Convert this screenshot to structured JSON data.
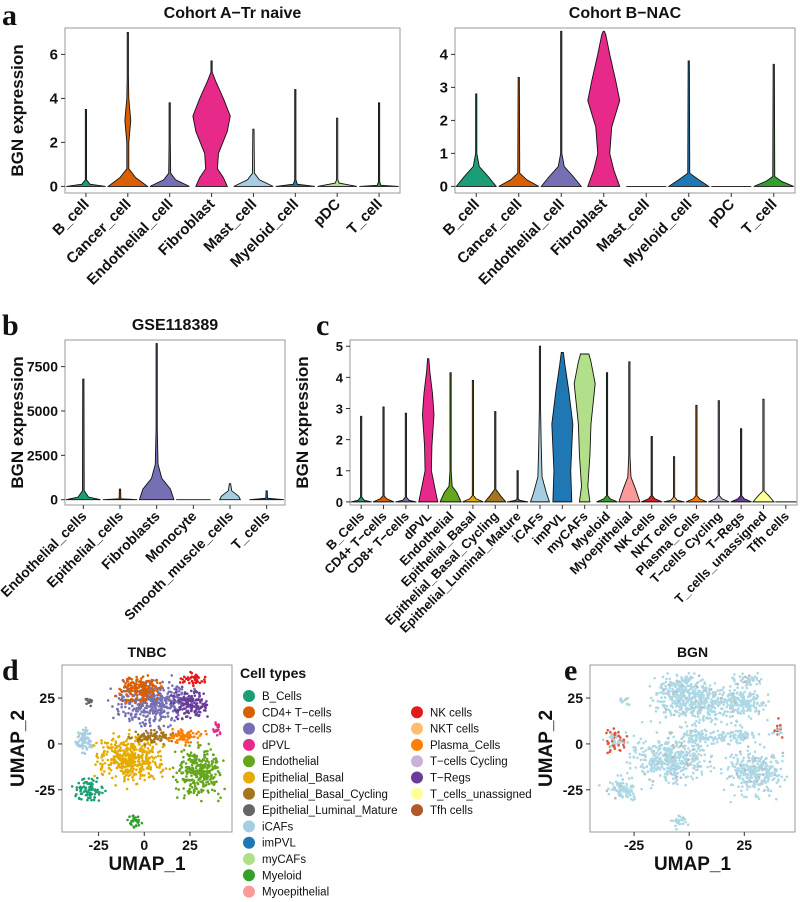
{
  "chart_data": [
    {
      "panel": "a",
      "type": "violin",
      "title": "Cohort A−Tr naive",
      "ylabel": "BGN expression",
      "ylim": [
        -0.3,
        7.2
      ],
      "yticks": [
        0,
        2,
        4,
        6
      ],
      "categories": [
        "B_cell",
        "Cancer_cell",
        "Endothelial_cell",
        "Fibroblast",
        "Mast_cell",
        "Myeloid_cell",
        "pDC",
        "T_cell"
      ],
      "colors": [
        "#1b9e77",
        "#d95f02",
        "#7570b3",
        "#e7298a",
        "#a6cee3",
        "#1f78b4",
        "#b2df8a",
        "#33a02c"
      ],
      "max": [
        3.5,
        7.0,
        3.8,
        5.7,
        2.6,
        4.4,
        3.1,
        3.8
      ],
      "profiles": [
        [
          [
            0,
            1
          ],
          [
            0.1,
            0.2
          ],
          [
            0.3,
            0.02
          ]
        ],
        [
          [
            0,
            1
          ],
          [
            0.4,
            0.4
          ],
          [
            0.8,
            0.05
          ],
          [
            2,
            0.05
          ],
          [
            3,
            0.15
          ],
          [
            4,
            0.05
          ],
          [
            5,
            0.02
          ]
        ],
        [
          [
            0,
            1
          ],
          [
            0.3,
            0.3
          ],
          [
            0.6,
            0.05
          ],
          [
            2,
            0.02
          ]
        ],
        [
          [
            0,
            0.8
          ],
          [
            0.4,
            0.6
          ],
          [
            0.8,
            0.3
          ],
          [
            1.5,
            0.35
          ],
          [
            2.5,
            0.8
          ],
          [
            3.2,
            0.95
          ],
          [
            4,
            0.6
          ],
          [
            4.8,
            0.2
          ],
          [
            5.2,
            0.03
          ]
        ],
        [
          [
            0,
            1
          ],
          [
            0.3,
            0.3
          ],
          [
            0.6,
            0.05
          ]
        ],
        [
          [
            0,
            1
          ],
          [
            0.1,
            0.1
          ],
          [
            0.3,
            0.02
          ]
        ],
        [
          [
            0,
            1
          ],
          [
            0.15,
            0.1
          ],
          [
            0.3,
            0.02
          ]
        ],
        [
          [
            0,
            1
          ],
          [
            0.05,
            0.1
          ],
          [
            0.2,
            0.02
          ]
        ]
      ]
    },
    {
      "panel": "a2",
      "type": "violin",
      "title": "Cohort B−NAC",
      "ylabel": "",
      "ylim": [
        -0.2,
        4.8
      ],
      "yticks": [
        0,
        1,
        2,
        3,
        4
      ],
      "categories": [
        "B_cell",
        "Cancer_cell",
        "Endothelial_cell",
        "Fibroblast",
        "Mast_cell",
        "Myeloid_cell",
        "pDC",
        "T_cell"
      ],
      "colors": [
        "#1b9e77",
        "#d95f02",
        "#7570b3",
        "#e7298a",
        "#a6cee3",
        "#1f78b4",
        "#b2df8a",
        "#33a02c"
      ],
      "max": [
        2.8,
        3.3,
        4.7,
        4.7,
        0,
        3.8,
        0,
        3.7
      ],
      "profiles": [
        [
          [
            0,
            1
          ],
          [
            0.3,
            0.6
          ],
          [
            0.6,
            0.15
          ],
          [
            1,
            0.03
          ]
        ],
        [
          [
            0,
            1
          ],
          [
            0.2,
            0.4
          ],
          [
            0.4,
            0.05
          ]
        ],
        [
          [
            0,
            1
          ],
          [
            0.3,
            0.6
          ],
          [
            0.6,
            0.15
          ],
          [
            1,
            0.03
          ]
        ],
        [
          [
            0,
            0.8
          ],
          [
            0.5,
            0.5
          ],
          [
            1,
            0.3
          ],
          [
            1.8,
            0.4
          ],
          [
            2.6,
            0.8
          ],
          [
            3.2,
            0.6
          ],
          [
            4,
            0.3
          ],
          [
            4.6,
            0.1
          ]
        ],
        [
          [
            0,
            1
          ]
        ],
        [
          [
            0,
            1
          ],
          [
            0.2,
            0.5
          ],
          [
            0.4,
            0.05
          ]
        ],
        [
          [
            0,
            1
          ]
        ],
        [
          [
            0,
            1
          ],
          [
            0.15,
            0.4
          ],
          [
            0.3,
            0.05
          ]
        ]
      ]
    },
    {
      "panel": "b",
      "type": "violin",
      "title": "GSE118389",
      "ylabel": "BGN expression",
      "ylim": [
        -300,
        9000
      ],
      "yticks": [
        0,
        2500,
        5000,
        7500
      ],
      "categories": [
        "Endothelial_cells",
        "Epithelial_cells",
        "Fibroblasts",
        "Monocyte",
        "Smooth_muscle_cells",
        "T_cells"
      ],
      "colors": [
        "#1b9e77",
        "#d95f02",
        "#7570b3",
        "#e7298a",
        "#a6cee3",
        "#1f78b4"
      ],
      "max": [
        6800,
        600,
        8800,
        0,
        900,
        500
      ],
      "profiles": [
        [
          [
            0,
            1
          ],
          [
            150,
            0.3
          ],
          [
            500,
            0.05
          ]
        ],
        [
          [
            0,
            1
          ],
          [
            50,
            0.05
          ]
        ],
        [
          [
            0,
            1
          ],
          [
            600,
            0.8
          ],
          [
            1200,
            0.3
          ],
          [
            2000,
            0.08
          ],
          [
            4000,
            0.03
          ]
        ],
        [
          [
            0,
            1
          ]
        ],
        [
          [
            0,
            0.6
          ],
          [
            200,
            0.5
          ],
          [
            500,
            0.1
          ]
        ],
        [
          [
            0,
            1
          ],
          [
            80,
            0.05
          ]
        ]
      ]
    },
    {
      "panel": "c",
      "type": "violin",
      "title": "",
      "ylabel": "BGN expression",
      "ylim": [
        -0.1,
        5.2
      ],
      "yticks": [
        0,
        1,
        2,
        3,
        4,
        5
      ],
      "categories": [
        "B_Cells",
        "CD4+ T−cells",
        "CD8+ T−cells",
        "dPVL",
        "Endothelial",
        "Epithelial_Basal",
        "Epithelial_Basal_Cycling",
        "Epithelial_Luminal_Mature",
        "iCAFs",
        "imPVL",
        "myCAFs",
        "Myeloid",
        "Myoepithelial",
        "NK cells",
        "NKT cells",
        "Plasma_Cells",
        "T−cells Cycling",
        "T−Regs",
        "T_cells_unassigned",
        "Tfh cells"
      ],
      "colors": [
        "#1b9e77",
        "#d95f02",
        "#7570b3",
        "#e7298a",
        "#66a61e",
        "#e6ab02",
        "#a6761d",
        "#666666",
        "#a6cee3",
        "#1f78b4",
        "#b2df8a",
        "#33a02c",
        "#fb9a99",
        "#e31a1c",
        "#fdbf6f",
        "#ff7f00",
        "#cab2d6",
        "#6a3d9a",
        "#ffff99",
        "#b15928"
      ],
      "max": [
        2.75,
        3.05,
        2.85,
        4.6,
        4.15,
        3.9,
        2.9,
        1.0,
        5.0,
        4.8,
        4.75,
        4.15,
        4.5,
        2.1,
        1.45,
        3.1,
        3.25,
        2.35,
        3.3,
        0
      ],
      "profiles": [
        [
          [
            0,
            1
          ],
          [
            0.05,
            0.3
          ],
          [
            0.15,
            0.03
          ]
        ],
        [
          [
            0,
            1
          ],
          [
            0.1,
            0.3
          ],
          [
            0.2,
            0.03
          ]
        ],
        [
          [
            0,
            1
          ],
          [
            0.05,
            0.3
          ],
          [
            0.15,
            0.03
          ]
        ],
        [
          [
            0,
            0.9
          ],
          [
            0.5,
            0.6
          ],
          [
            1,
            0.3
          ],
          [
            1.8,
            0.35
          ],
          [
            2.8,
            0.55
          ],
          [
            3.5,
            0.4
          ],
          [
            4.2,
            0.15
          ],
          [
            4.6,
            0.03
          ]
        ],
        [
          [
            0,
            1
          ],
          [
            0.3,
            0.6
          ],
          [
            0.5,
            0.15
          ],
          [
            1,
            0.03
          ]
        ],
        [
          [
            0,
            1
          ],
          [
            0.1,
            0.3
          ],
          [
            0.2,
            0.03
          ]
        ],
        [
          [
            0,
            1
          ],
          [
            0.2,
            0.5
          ],
          [
            0.4,
            0.03
          ]
        ],
        [
          [
            0,
            1
          ],
          [
            0.05,
            0.2
          ],
          [
            0.1,
            0.03
          ]
        ],
        [
          [
            0,
            0.9
          ],
          [
            0.3,
            0.6
          ],
          [
            0.8,
            0.2
          ],
          [
            1.8,
            0.12
          ],
          [
            3,
            0.05
          ],
          [
            4,
            0.02
          ]
        ],
        [
          [
            0,
            0.9
          ],
          [
            1,
            0.8
          ],
          [
            2.5,
            1
          ],
          [
            3.6,
            0.6
          ],
          [
            4.4,
            0.25
          ],
          [
            4.8,
            0.1
          ]
        ],
        [
          [
            0,
            0.5
          ],
          [
            0.5,
            0.3
          ],
          [
            1.5,
            0.5
          ],
          [
            2.5,
            0.6
          ],
          [
            3.8,
            1
          ],
          [
            4.5,
            0.6
          ],
          [
            4.75,
            0.4
          ]
        ],
        [
          [
            0,
            1
          ],
          [
            0.1,
            0.3
          ],
          [
            0.2,
            0.03
          ]
        ],
        [
          [
            0,
            1
          ],
          [
            0.4,
            0.6
          ],
          [
            0.8,
            0.15
          ],
          [
            1.5,
            0.05
          ],
          [
            3,
            0.02
          ]
        ],
        [
          [
            0,
            1
          ],
          [
            0.1,
            0.3
          ],
          [
            0.2,
            0.03
          ]
        ],
        [
          [
            0,
            1
          ],
          [
            0.05,
            0.3
          ],
          [
            0.15,
            0.03
          ]
        ],
        [
          [
            0,
            1
          ],
          [
            0.1,
            0.3
          ],
          [
            0.2,
            0.03
          ]
        ],
        [
          [
            0,
            1
          ],
          [
            0.1,
            0.3
          ],
          [
            0.2,
            0.03
          ]
        ],
        [
          [
            0,
            1
          ],
          [
            0.1,
            0.3
          ],
          [
            0.2,
            0.03
          ]
        ],
        [
          [
            0,
            1
          ],
          [
            0.2,
            0.5
          ],
          [
            0.35,
            0.03
          ]
        ],
        [
          [
            0,
            1
          ]
        ]
      ]
    },
    {
      "panel": "d",
      "type": "scatter",
      "title": "TNBC",
      "xlabel": "UMAP_1",
      "ylabel": "UMAP_2",
      "xticks": [
        -25,
        0,
        25
      ],
      "yticks": [
        -25,
        0,
        25
      ],
      "xlim": [
        -45,
        48
      ],
      "ylim": [
        -48,
        43
      ],
      "legend_title": "Cell types",
      "legend_position": "right",
      "clusters": [
        {
          "type": "CD8+ T−cells",
          "center": [
            5,
            22
          ],
          "spread": [
            15,
            9
          ]
        },
        {
          "type": "CD4+ T−cells",
          "center": [
            -3,
            30
          ],
          "spread": [
            9,
            6
          ]
        },
        {
          "type": "Epithelial_Basal",
          "center": [
            -8,
            -8
          ],
          "spread": [
            14,
            10
          ]
        },
        {
          "type": "Epithelial_Basal_Cycling",
          "center": [
            5,
            4
          ],
          "spread": [
            10,
            3
          ]
        },
        {
          "type": "Endothelial",
          "center": [
            30,
            -15
          ],
          "spread": [
            10,
            10
          ]
        },
        {
          "type": "B_Cells",
          "center": [
            -30,
            -25
          ],
          "spread": [
            6,
            5
          ]
        },
        {
          "type": "iCAFs",
          "center": [
            -33,
            2
          ],
          "spread": [
            4,
            6
          ]
        },
        {
          "type": "Epithelial_Luminal_Mature",
          "center": [
            -30,
            23
          ],
          "spread": [
            2,
            2
          ]
        },
        {
          "type": "Myeloid",
          "center": [
            -5,
            -42
          ],
          "spread": [
            3,
            3
          ]
        },
        {
          "type": "Plasma_Cells",
          "center": [
            22,
            4
          ],
          "spread": [
            8,
            3
          ]
        },
        {
          "type": "T−Regs",
          "center": [
            25,
            22
          ],
          "spread": [
            8,
            6
          ]
        },
        {
          "type": "dPVL",
          "center": [
            40,
            8
          ],
          "spread": [
            2,
            3
          ]
        },
        {
          "type": "NK cells",
          "center": [
            27,
            35
          ],
          "spread": [
            5,
            3
          ]
        }
      ]
    },
    {
      "panel": "e",
      "type": "scatter",
      "title": "BGN",
      "xlabel": "UMAP_1",
      "ylabel": "UMAP_2",
      "xticks": [
        -25,
        0,
        25
      ],
      "yticks": [
        -25,
        0,
        25
      ],
      "xlim": [
        -45,
        48
      ],
      "ylim": [
        -48,
        43
      ],
      "colors": {
        "low": "#add8e6",
        "mid": "#bbbbbb",
        "high": "#e0553a"
      }
    }
  ],
  "labels": {
    "a": "a",
    "b": "b",
    "c": "c",
    "d": "d",
    "e": "e"
  }
}
